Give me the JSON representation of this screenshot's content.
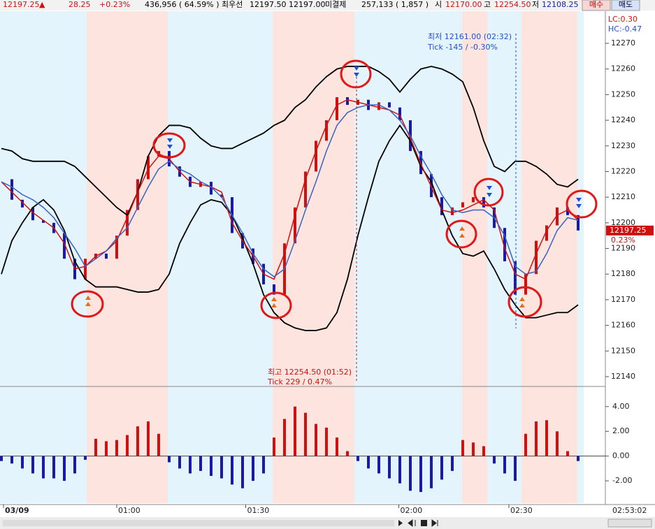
{
  "header": {
    "last": "12197.25",
    "arrow": "▲",
    "change": "28.25",
    "change_pct": "+0.23%",
    "volume": "436,956",
    "volume_ratio": "( 64.59% )",
    "best_label": "최우선",
    "best_bid": "12197.50",
    "best_ask": "12197.00",
    "oi_label": "미결제",
    "oi": "257,133",
    "oi_change": "( 1,857 )",
    "open_label": "시",
    "open": "12170.00",
    "high_label": "고",
    "high": "12254.50",
    "low_label": "저",
    "low": "12108.25",
    "buy": "매수",
    "sell": "매도"
  },
  "chart_data": [
    {
      "type": "candlestick-line",
      "ylim": [
        12137,
        12282
      ],
      "yticks": [
        12140,
        12150,
        12160,
        12170,
        12180,
        12190,
        12200,
        12210,
        12220,
        12230,
        12240,
        12250,
        12260,
        12270
      ],
      "xticks": [
        {
          "value": 0.2,
          "label": "03/09"
        },
        {
          "value": 11,
          "label": "01:00"
        },
        {
          "value": 23.3,
          "label": "01:30"
        },
        {
          "value": 37.9,
          "label": "02:00"
        },
        {
          "value": 48.4,
          "label": "02:30"
        }
      ],
      "time": "02:53:02",
      "last_price": "12197.25",
      "last_pct": "0.23%",
      "lc": "LC:0.30",
      "hc": "HC:-0.47",
      "low_note": [
        "최저 12161.00 (02:32)",
        "Tick -145 / -0.30%"
      ],
      "high_note": [
        "최고 12254.50 (01:52)",
        "Tick 229 / 0.47%"
      ],
      "close": [
        12217,
        12209,
        12206,
        12201,
        12200,
        12196,
        12186,
        12178,
        12186,
        12188,
        12186,
        12195,
        12205,
        12217,
        12226,
        12228,
        12222,
        12218,
        12214,
        12216,
        12211,
        12210,
        12196,
        12190,
        12184,
        12176,
        12172,
        12192,
        12206,
        12220,
        12232,
        12240,
        12249,
        12246,
        12248,
        12244,
        12247,
        12245,
        12240,
        12228,
        12219,
        12210,
        12203,
        12206,
        12208,
        12210,
        12206,
        12198,
        12185,
        12172,
        12180,
        12193,
        12199,
        12206,
        12203,
        12197
      ],
      "series": [
        {
          "color": "#000000",
          "values": [
            12229,
            12228,
            12225,
            12224,
            12224,
            12224,
            12224,
            12222,
            12218,
            12214,
            12210,
            12206,
            12203,
            12212,
            12226,
            12234,
            12238,
            12238,
            12237,
            12233,
            12230,
            12229,
            12229,
            12231,
            12233,
            12235,
            12238,
            12240,
            12245,
            12248,
            12253,
            12257,
            12260,
            12261,
            12261,
            12261,
            12259,
            12256,
            12251,
            12256,
            12260,
            12261,
            12260,
            12258,
            12255,
            12245,
            12232,
            12222,
            12220,
            12224,
            12224,
            12222,
            12219,
            12215,
            12214,
            12217
          ]
        },
        {
          "color": "#000000",
          "values": [
            12180,
            12193,
            12200,
            12206,
            12209,
            12205,
            12197,
            12185,
            12178,
            12175,
            12175,
            12175,
            12174,
            12173,
            12173,
            12174,
            12180,
            12192,
            12200,
            12207,
            12209,
            12208,
            12203,
            12194,
            12184,
            12172,
            12165,
            12161,
            12159,
            12158,
            12158,
            12159,
            12165,
            12178,
            12195,
            12210,
            12224,
            12232,
            12238,
            12232,
            12222,
            12216,
            12205,
            12195,
            12188,
            12187,
            12189,
            12182,
            12174,
            12168,
            12163,
            12163,
            12164,
            12165,
            12165,
            12168
          ]
        },
        {
          "color": "#d01010",
          "values": [
            12216,
            12212,
            12208,
            12204,
            12201,
            12198,
            12192,
            12182,
            12183,
            12187,
            12189,
            12193,
            12202,
            12212,
            12221,
            12226,
            12225,
            12220,
            12216,
            12215,
            12214,
            12212,
            12200,
            12193,
            12187,
            12180,
            12178,
            12188,
            12203,
            12217,
            12228,
            12238,
            12246,
            12248,
            12247,
            12246,
            12245,
            12244,
            12242,
            12233,
            12223,
            12214,
            12205,
            12204,
            12205,
            12207,
            12209,
            12205,
            12190,
            12180,
            12178,
            12188,
            12197,
            12203,
            12205,
            12201
          ]
        },
        {
          "color": "#3a62c0",
          "values": [
            12216,
            12214,
            12211,
            12209,
            12206,
            12202,
            12196,
            12190,
            12183,
            12186,
            12189,
            12194,
            12198,
            12206,
            12214,
            12221,
            12224,
            12221,
            12219,
            12216,
            12214,
            12210,
            12203,
            12196,
            12188,
            12182,
            12179,
            12182,
            12193,
            12205,
            12216,
            12228,
            12238,
            12243,
            12245,
            12246,
            12246,
            12244,
            12240,
            12234,
            12226,
            12219,
            12211,
            12205,
            12204,
            12205,
            12205,
            12202,
            12195,
            12183,
            12180,
            12181,
            12188,
            12197,
            12202,
            12201
          ]
        }
      ]
    },
    {
      "type": "bar",
      "ylim": [
        -3.8,
        5.4
      ],
      "yticks": [
        {
          "value": 4,
          "label": "4.00"
        },
        {
          "value": 2,
          "label": "2.00"
        },
        {
          "value": 0,
          "label": "0.00"
        },
        {
          "value": -2,
          "label": "-2.00"
        }
      ],
      "colors": {
        "up": "#d01010",
        "down": "#1a1aa8"
      },
      "values": [
        -0.4,
        -0.6,
        -1.0,
        -1.4,
        -1.8,
        -1.8,
        -2.0,
        -1.4,
        -0.3,
        1.4,
        1.2,
        1.3,
        1.7,
        2.4,
        2.8,
        1.8,
        -0.5,
        -1.0,
        -1.4,
        -1.2,
        -1.6,
        -1.8,
        -2.3,
        -2.6,
        -2.0,
        -1.4,
        1.5,
        3.0,
        4.0,
        3.5,
        2.6,
        2.3,
        1.5,
        0.4,
        -0.4,
        -1.0,
        -1.4,
        -1.8,
        -2.2,
        -2.8,
        -2.9,
        -2.6,
        -1.9,
        -1.2,
        1.3,
        1.1,
        0.8,
        -0.6,
        -1.4,
        -2.0,
        1.8,
        2.8,
        2.9,
        2.0,
        0.4,
        -0.4
      ]
    }
  ]
}
